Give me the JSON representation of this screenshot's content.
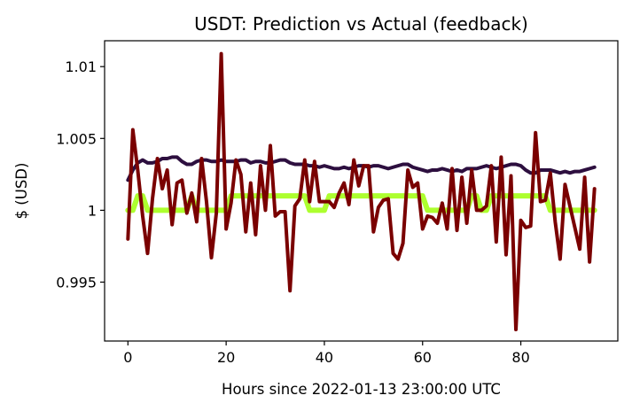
{
  "chart_data": {
    "type": "line",
    "title": "USDT: Prediction vs Actual (feedback)",
    "xlabel": "Hours since 2022-01-13 23:00:00 UTC",
    "ylabel": "$ (USD)",
    "xlim": [
      -4.75,
      99.75
    ],
    "ylim": [
      0.9909,
      1.0118
    ],
    "xticks": [
      0,
      20,
      40,
      60,
      80
    ],
    "xtick_labels": [
      "0",
      "20",
      "40",
      "60",
      "80"
    ],
    "yticks": [
      0.995,
      1.0,
      1.005,
      1.01
    ],
    "ytick_labels": [
      "0.995",
      "1",
      "1.005",
      "1.01"
    ],
    "grid": false,
    "legend": "none",
    "x": [
      0,
      1,
      2,
      3,
      4,
      5,
      6,
      7,
      8,
      9,
      10,
      11,
      12,
      13,
      14,
      15,
      16,
      17,
      18,
      19,
      20,
      21,
      22,
      23,
      24,
      25,
      26,
      27,
      28,
      29,
      30,
      31,
      32,
      33,
      34,
      35,
      36,
      37,
      38,
      39,
      40,
      41,
      42,
      43,
      44,
      45,
      46,
      47,
      48,
      49,
      50,
      51,
      52,
      53,
      54,
      55,
      56,
      57,
      58,
      59,
      60,
      61,
      62,
      63,
      64,
      65,
      66,
      67,
      68,
      69,
      70,
      71,
      72,
      73,
      74,
      75,
      76,
      77,
      78,
      79,
      80,
      81,
      82,
      83,
      84,
      85,
      86,
      87,
      88,
      89,
      90,
      91,
      92,
      93,
      94,
      95
    ],
    "series": [
      {
        "color": "#adff2f",
        "width": 6,
        "values": [
          1.0,
          1.0,
          1.001,
          1.001,
          1.0,
          1.0,
          1.0,
          1.0,
          1.0,
          1.0,
          1.0,
          1.0,
          1.0,
          1.001,
          1.0,
          1.0,
          1.0,
          1.0,
          1.0,
          1.0,
          1.0,
          1.001,
          1.001,
          1.001,
          1.001,
          1.001,
          1.001,
          1.001,
          1.001,
          1.001,
          1.001,
          1.001,
          1.001,
          1.001,
          1.001,
          1.001,
          1.001,
          1.0,
          1.0,
          1.0,
          1.0,
          1.001,
          1.001,
          1.001,
          1.001,
          1.001,
          1.001,
          1.001,
          1.001,
          1.001,
          1.001,
          1.001,
          1.001,
          1.001,
          1.001,
          1.001,
          1.001,
          1.001,
          1.001,
          1.001,
          1.001,
          1.0,
          1.0,
          1.0,
          1.0,
          1.0,
          1.0,
          1.0,
          1.0,
          1.0,
          1.001,
          1.001,
          1.0,
          1.0,
          1.001,
          1.001,
          1.001,
          1.001,
          1.001,
          1.001,
          1.001,
          1.001,
          1.001,
          1.001,
          1.001,
          1.001,
          1.0,
          1.0,
          1.0,
          1.0,
          1.0,
          1.0,
          1.0,
          1.0,
          1.0,
          1.0
        ]
      },
      {
        "color": "#2d0f3f",
        "width": 4,
        "values": [
          1.0021,
          1.0028,
          1.0033,
          1.0035,
          1.0033,
          1.0033,
          1.0034,
          1.0036,
          1.0036,
          1.0037,
          1.0037,
          1.0034,
          1.0032,
          1.0032,
          1.0034,
          1.0035,
          1.0035,
          1.0034,
          1.0034,
          1.0035,
          1.0034,
          1.0034,
          1.0034,
          1.0035,
          1.0035,
          1.0033,
          1.0034,
          1.0034,
          1.0033,
          1.0033,
          1.0034,
          1.0035,
          1.0035,
          1.0033,
          1.0032,
          1.0032,
          1.0032,
          1.0031,
          1.0031,
          1.003,
          1.0031,
          1.003,
          1.0029,
          1.0029,
          1.003,
          1.0029,
          1.003,
          1.0031,
          1.0031,
          1.003,
          1.0031,
          1.0031,
          1.003,
          1.0029,
          1.003,
          1.0031,
          1.0032,
          1.0032,
          1.003,
          1.0029,
          1.0028,
          1.0027,
          1.0028,
          1.0028,
          1.0029,
          1.0028,
          1.0027,
          1.0028,
          1.0027,
          1.0029,
          1.0029,
          1.0029,
          1.003,
          1.0031,
          1.003,
          1.0029,
          1.003,
          1.0031,
          1.0032,
          1.0032,
          1.0031,
          1.0028,
          1.0026,
          1.0026,
          1.0028,
          1.0028,
          1.0028,
          1.0027,
          1.0026,
          1.0027,
          1.0026,
          1.0027,
          1.0027,
          1.0028,
          1.0029,
          1.003
        ]
      },
      {
        "color": "#7a0000",
        "width": 4,
        "values": [
          0.998,
          1.0056,
          1.0028,
          0.9996,
          0.997,
          1.0008,
          1.0036,
          1.0015,
          1.0028,
          0.999,
          1.0019,
          1.0021,
          0.9998,
          1.0012,
          0.9992,
          1.0036,
          1.0006,
          0.9967,
          0.9998,
          1.0109,
          0.9987,
          1.0005,
          1.0035,
          1.0025,
          0.9985,
          1.0019,
          0.9983,
          1.0031,
          1.0,
          1.0045,
          0.9996,
          0.9999,
          0.9999,
          0.9944,
          1.0003,
          1.0008,
          1.0035,
          1.0006,
          1.0034,
          1.0006,
          1.0006,
          1.0006,
          1.0002,
          1.0012,
          1.0019,
          1.0004,
          1.0035,
          1.0017,
          1.0031,
          1.0031,
          0.9985,
          1.0002,
          1.0007,
          1.0008,
          0.997,
          0.9966,
          0.9977,
          1.0028,
          1.0016,
          1.0019,
          0.9987,
          0.9996,
          0.9995,
          0.9991,
          1.0005,
          0.9987,
          1.0029,
          0.9986,
          1.0023,
          0.9991,
          1.0028,
          1.0,
          1.0,
          1.0003,
          1.0031,
          0.9978,
          1.0037,
          0.9969,
          1.0024,
          0.9917,
          0.9993,
          0.9988,
          0.9989,
          1.0054,
          1.0006,
          1.0007,
          1.0026,
          0.9992,
          0.9966,
          1.0018,
          1.0003,
          0.9988,
          0.9973,
          1.0023,
          0.9964,
          1.0015
        ]
      }
    ]
  }
}
